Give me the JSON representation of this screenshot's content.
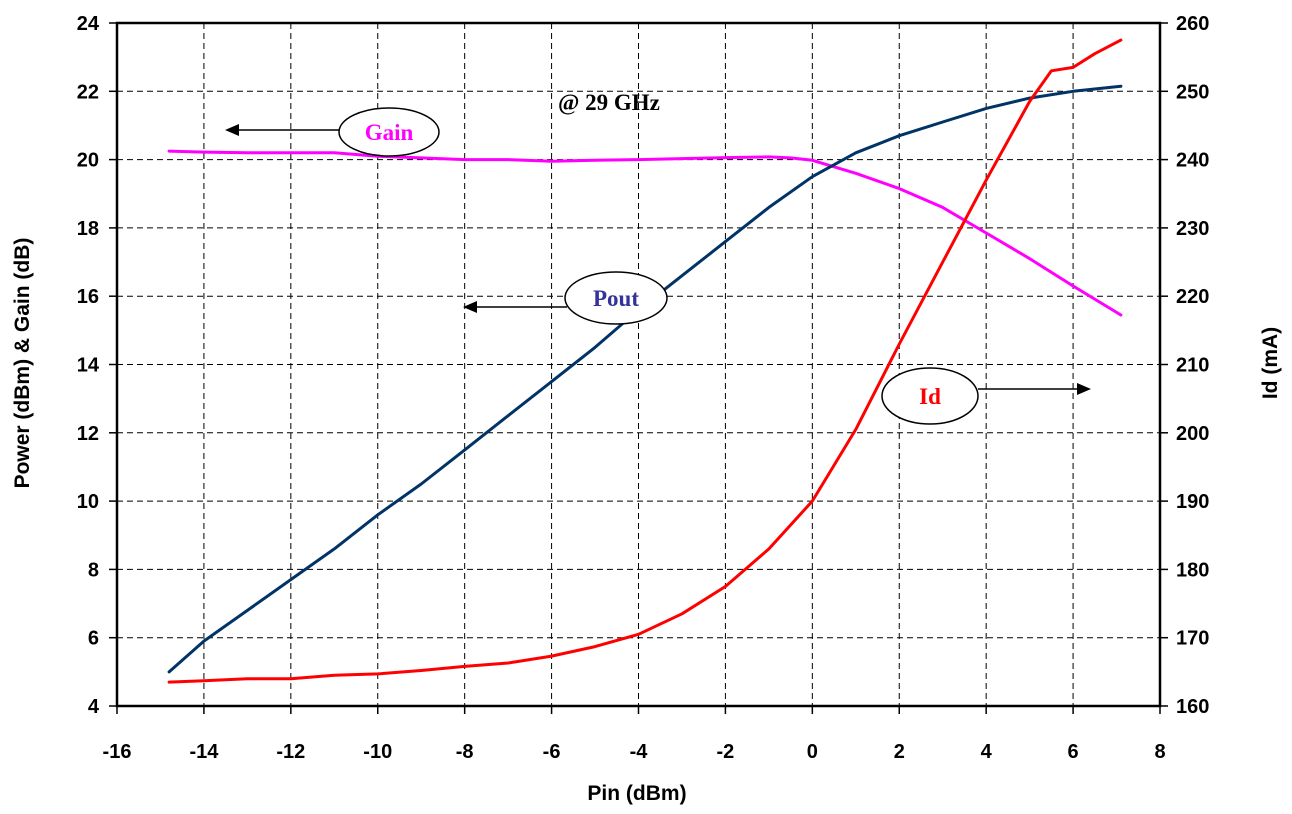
{
  "chart_data": {
    "type": "line",
    "xlabel": "Pin (dBm)",
    "ylabel": "Power (dBm) & Gain (dB)",
    "y2label": "Id (mA)",
    "xlim": [
      -16,
      8
    ],
    "ylim": [
      4,
      24
    ],
    "y2lim": [
      160,
      260
    ],
    "xticks": [
      -16,
      -14,
      -12,
      -10,
      -8,
      -6,
      -4,
      -2,
      0,
      2,
      4,
      6,
      8
    ],
    "yticks": [
      4,
      6,
      8,
      10,
      12,
      14,
      16,
      18,
      20,
      22,
      24
    ],
    "y2ticks": [
      160,
      170,
      180,
      190,
      200,
      210,
      220,
      230,
      240,
      250,
      260
    ],
    "grid": true,
    "annotation": "@ 29 GHz",
    "series": [
      {
        "name": "Gain",
        "axis": "left",
        "color": "#ff00ff",
        "x": [
          -14.8,
          -14,
          -13,
          -12,
          -11,
          -10,
          -9,
          -8,
          -7,
          -6,
          -5,
          -4,
          -3,
          -2,
          -1,
          -0.5,
          0,
          1,
          2,
          3,
          4,
          5,
          6,
          7.1
        ],
        "y": [
          20.25,
          20.22,
          20.2,
          20.2,
          20.2,
          20.1,
          20.05,
          20.0,
          20.0,
          19.95,
          19.98,
          20.0,
          20.03,
          20.06,
          20.08,
          20.05,
          19.98,
          19.6,
          19.15,
          18.6,
          17.85,
          17.1,
          16.3,
          15.45
        ]
      },
      {
        "name": "Pout",
        "axis": "left",
        "color": "#003366",
        "x": [
          -14.8,
          -14,
          -13,
          -12,
          -11,
          -10,
          -9,
          -8,
          -7,
          -6,
          -5,
          -4,
          -3,
          -2,
          -1,
          0,
          1,
          2,
          3,
          4,
          5,
          6,
          7.1
        ],
        "y": [
          5.0,
          5.9,
          6.8,
          7.7,
          8.6,
          9.6,
          10.5,
          11.5,
          12.5,
          13.5,
          14.5,
          15.6,
          16.6,
          17.6,
          18.6,
          19.5,
          20.2,
          20.7,
          21.1,
          21.5,
          21.8,
          22.0,
          22.15
        ]
      },
      {
        "name": "Id",
        "axis": "right",
        "color": "#ff0000",
        "x": [
          -14.8,
          -14,
          -13,
          -12,
          -11,
          -10,
          -9,
          -8,
          -7,
          -6,
          -5,
          -4,
          -3,
          -2,
          -1,
          0,
          1,
          2,
          3,
          4,
          5,
          5.5,
          6,
          6.5,
          7.1
        ],
        "y": [
          163.5,
          163.7,
          164,
          164,
          164.5,
          164.7,
          165.2,
          165.8,
          166.3,
          167.3,
          168.7,
          170.5,
          173.5,
          177.5,
          183,
          190,
          200.5,
          213,
          225,
          237,
          248.5,
          253,
          253.5,
          255.5,
          257.5
        ]
      }
    ]
  },
  "labels": {
    "gain": "Gain",
    "pout": "Pout",
    "id": "Id"
  }
}
